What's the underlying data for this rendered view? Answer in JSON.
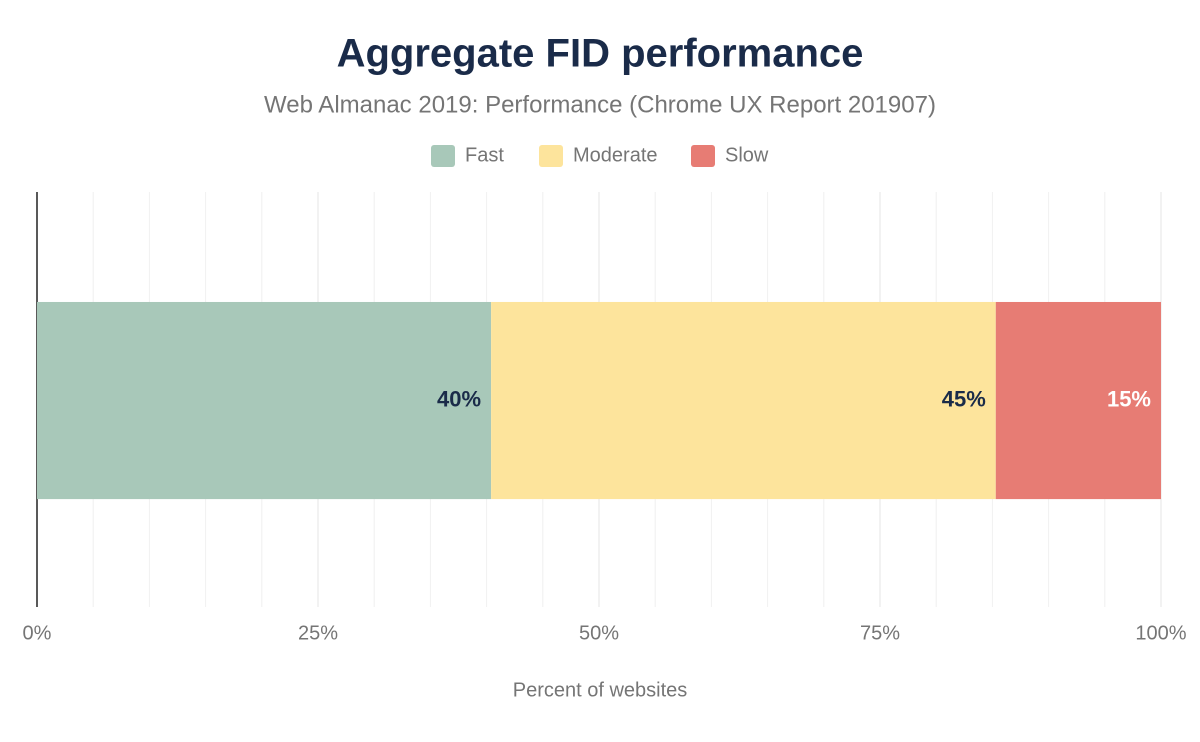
{
  "chart_data": {
    "type": "stacked_bar_horizontal",
    "title": "Aggregate FID performance",
    "subtitle": "Web Almanac 2019: Performance (Chrome UX Report 201907)",
    "x_axis_label": "Percent of websites",
    "categories": [
      null
    ],
    "series": [
      {
        "name": "Fast",
        "color": "#a8c8b9",
        "label_color": "#1a2b49",
        "values": [
          40.4
        ],
        "value_labels": [
          "40%"
        ]
      },
      {
        "name": "Moderate",
        "color": "#fde49c",
        "label_color": "#1a2b49",
        "values": [
          44.9
        ],
        "value_labels": [
          "45%"
        ]
      },
      {
        "name": "Slow",
        "color": "#e77c74",
        "label_color": "#ffffff",
        "values": [
          14.7
        ],
        "value_labels": [
          "15%"
        ]
      }
    ],
    "xlim": [
      0,
      100
    ],
    "xticks": [
      {
        "value": 0,
        "label": "0%"
      },
      {
        "value": 25,
        "label": "25%"
      },
      {
        "value": 50,
        "label": "50%"
      },
      {
        "value": 75,
        "label": "75%"
      },
      {
        "value": 100,
        "label": "100%"
      }
    ],
    "minor_xticks": [
      5,
      10,
      15,
      20,
      30,
      35,
      40,
      45,
      55,
      60,
      65,
      70,
      80,
      85,
      90,
      95
    ],
    "grid": true,
    "legend_position": "top"
  }
}
